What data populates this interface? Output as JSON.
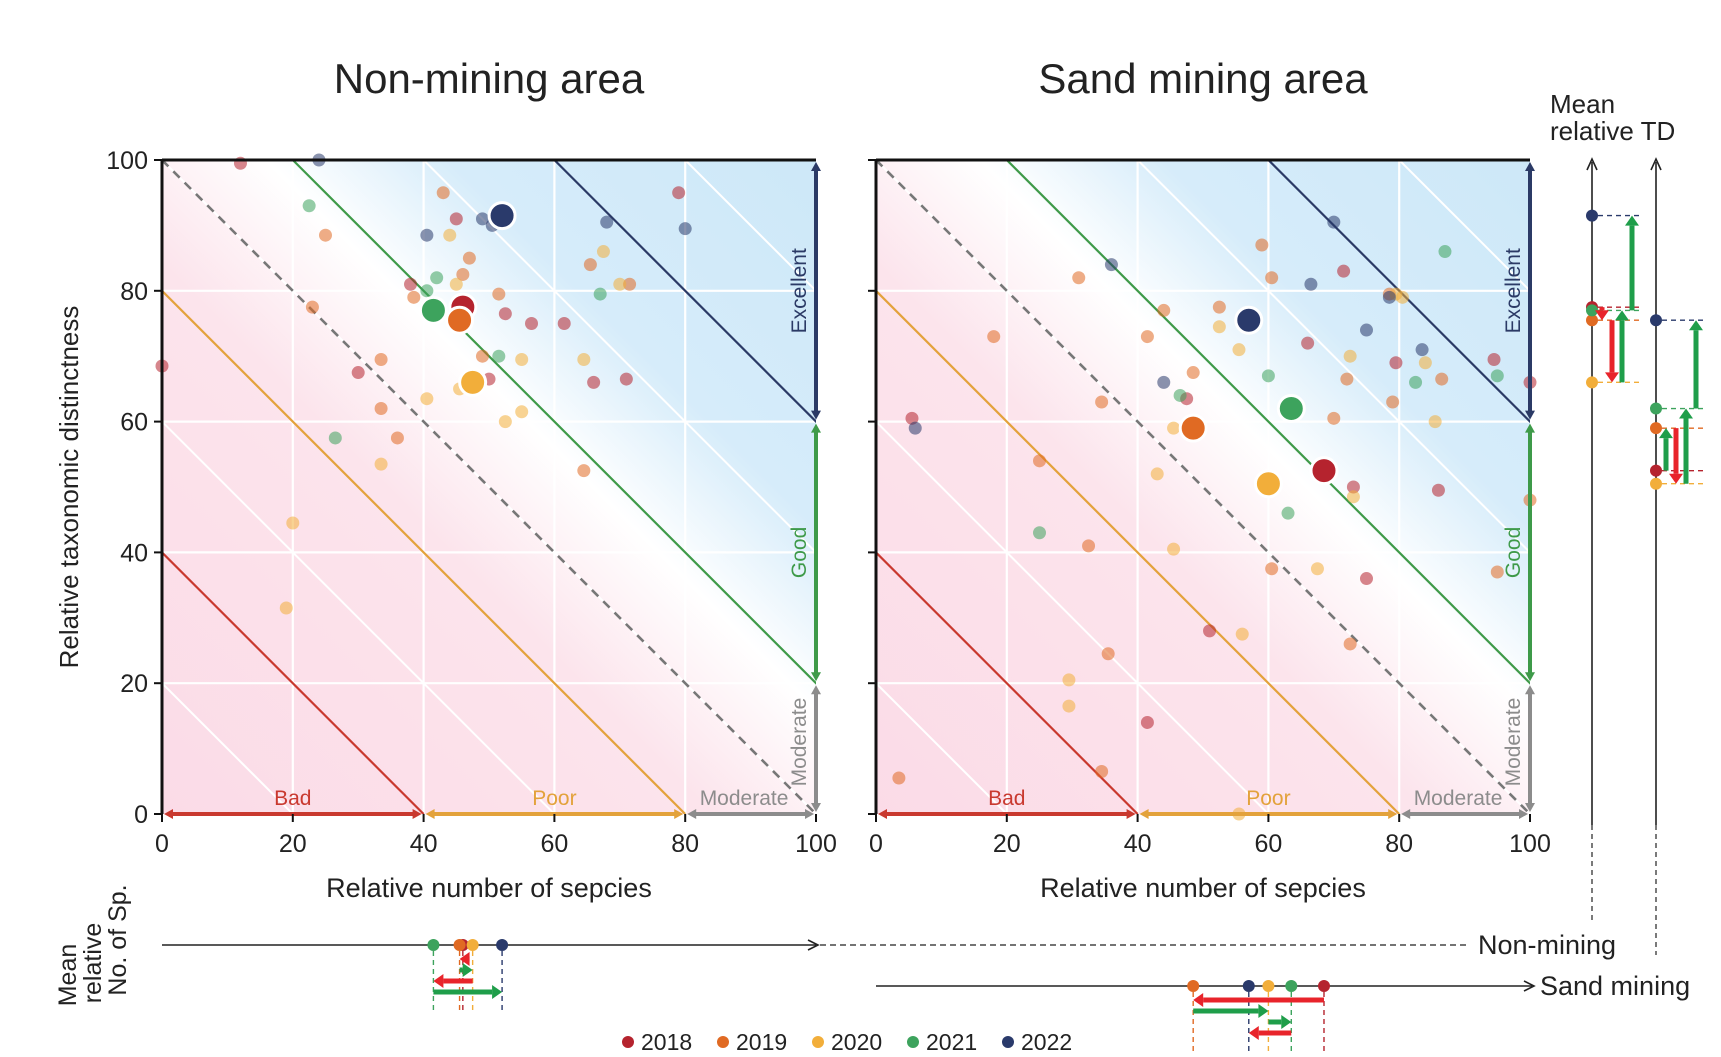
{
  "colors": {
    "2018": "#b5232e",
    "2019": "#e06a23",
    "2020": "#f2ae3a",
    "2021": "#3da35d",
    "2022": "#2a3a6b",
    "bad": "#c9392f",
    "poor": "#e3a23b",
    "good": "#3e9a49",
    "excellent": "#2b3a66",
    "moderate": "#8c8c8c",
    "arrow_up": "#1f9e4a",
    "arrow_down": "#e8242b",
    "blue_zone": "#cfe9f9",
    "pink_zone": "#fbdbe7"
  },
  "legend": [
    {
      "label": "2018",
      "year": "2018"
    },
    {
      "label": "2019",
      "year": "2019"
    },
    {
      "label": "2020",
      "year": "2020"
    },
    {
      "label": "2021",
      "year": "2021"
    },
    {
      "label": "2022",
      "year": "2022"
    }
  ],
  "labels": {
    "bad": "Bad",
    "poor": "Poor",
    "moderate": "Moderate",
    "good": "Good",
    "excellent": "Excellent",
    "ylabel": "Relative taxonomic distinctness",
    "xlabel": "Relative number of sepcies",
    "mean_td_line1": "Mean",
    "mean_td_line2": "relative TD",
    "mean_sp_line1": "Mean",
    "mean_sp_line2": "relative",
    "mean_sp_line3": "No. of Sp.",
    "non_mining": "Non-mining",
    "sand_mining": "Sand mining"
  },
  "chart_data": [
    {
      "type": "scatter",
      "title": "Non-mining area",
      "xlabel": "Relative number of sepcies",
      "ylabel": "Relative taxonomic distinctness",
      "xlim": [
        0,
        100
      ],
      "ylim": [
        0,
        100
      ],
      "xticks": [
        0,
        20,
        40,
        60,
        80,
        100
      ],
      "yticks": [
        0,
        20,
        40,
        60,
        80,
        100
      ],
      "grid": true,
      "means": [
        {
          "year": "2018",
          "x": 46,
          "y": 77.5
        },
        {
          "year": "2019",
          "x": 45.5,
          "y": 75.5
        },
        {
          "year": "2020",
          "x": 47.5,
          "y": 66
        },
        {
          "year": "2021",
          "x": 41.5,
          "y": 77
        },
        {
          "year": "2022",
          "x": 52,
          "y": 91.5
        }
      ],
      "points": [
        {
          "year": "2018",
          "x": 45,
          "y": 91
        },
        {
          "year": "2018",
          "x": 38,
          "y": 81
        },
        {
          "year": "2018",
          "x": 50,
          "y": 66.5
        },
        {
          "year": "2018",
          "x": 66,
          "y": 66
        },
        {
          "year": "2018",
          "x": 71,
          "y": 66.5
        },
        {
          "year": "2018",
          "x": 56.5,
          "y": 75
        },
        {
          "year": "2018",
          "x": 61.5,
          "y": 75
        },
        {
          "year": "2018",
          "x": 30,
          "y": 67.5
        },
        {
          "year": "2018",
          "x": 79,
          "y": 95
        },
        {
          "year": "2018",
          "x": 0,
          "y": 68.5
        },
        {
          "year": "2018",
          "x": 12,
          "y": 99.5
        },
        {
          "year": "2018",
          "x": 52.5,
          "y": 76.5
        },
        {
          "year": "2019",
          "x": 43,
          "y": 95
        },
        {
          "year": "2019",
          "x": 25,
          "y": 88.5
        },
        {
          "year": "2019",
          "x": 23,
          "y": 77.5
        },
        {
          "year": "2019",
          "x": 33.5,
          "y": 69.5
        },
        {
          "year": "2019",
          "x": 33.5,
          "y": 62
        },
        {
          "year": "2019",
          "x": 36,
          "y": 57.5
        },
        {
          "year": "2019",
          "x": 46,
          "y": 82.5
        },
        {
          "year": "2019",
          "x": 51.5,
          "y": 79.5
        },
        {
          "year": "2019",
          "x": 49,
          "y": 70
        },
        {
          "year": "2019",
          "x": 65.5,
          "y": 84
        },
        {
          "year": "2019",
          "x": 64.5,
          "y": 52.5
        },
        {
          "year": "2019",
          "x": 71.5,
          "y": 81
        },
        {
          "year": "2019",
          "x": 38.5,
          "y": 79
        },
        {
          "year": "2019",
          "x": 47,
          "y": 85
        },
        {
          "year": "2020",
          "x": 20,
          "y": 44.5
        },
        {
          "year": "2020",
          "x": 19,
          "y": 31.5
        },
        {
          "year": "2020",
          "x": 33.5,
          "y": 53.5
        },
        {
          "year": "2020",
          "x": 40.5,
          "y": 63.5
        },
        {
          "year": "2020",
          "x": 44,
          "y": 88.5
        },
        {
          "year": "2020",
          "x": 45,
          "y": 81
        },
        {
          "year": "2020",
          "x": 52.5,
          "y": 60
        },
        {
          "year": "2020",
          "x": 55,
          "y": 61.5
        },
        {
          "year": "2020",
          "x": 55,
          "y": 69.5
        },
        {
          "year": "2020",
          "x": 64.5,
          "y": 69.5
        },
        {
          "year": "2020",
          "x": 67.5,
          "y": 86
        },
        {
          "year": "2020",
          "x": 70,
          "y": 81
        },
        {
          "year": "2020",
          "x": 45.5,
          "y": 65
        },
        {
          "year": "2021",
          "x": 22.5,
          "y": 93
        },
        {
          "year": "2021",
          "x": 26.5,
          "y": 57.5
        },
        {
          "year": "2021",
          "x": 40.5,
          "y": 80
        },
        {
          "year": "2021",
          "x": 42,
          "y": 82
        },
        {
          "year": "2021",
          "x": 51.5,
          "y": 70
        },
        {
          "year": "2021",
          "x": 67,
          "y": 79.5
        },
        {
          "year": "2022",
          "x": 24,
          "y": 100
        },
        {
          "year": "2022",
          "x": 40.5,
          "y": 88.5
        },
        {
          "year": "2022",
          "x": 49,
          "y": 91
        },
        {
          "year": "2022",
          "x": 50.5,
          "y": 90
        },
        {
          "year": "2022",
          "x": 68,
          "y": 90.5
        },
        {
          "year": "2022",
          "x": 80,
          "y": 89.5
        }
      ]
    },
    {
      "type": "scatter",
      "title": "Sand mining area",
      "xlabel": "Relative number of sepcies",
      "xlim": [
        0,
        100
      ],
      "ylim": [
        0,
        100
      ],
      "xticks": [
        0,
        20,
        40,
        60,
        80,
        100
      ],
      "yticks": [
        0,
        20,
        40,
        60,
        80,
        100
      ],
      "grid": true,
      "means": [
        {
          "year": "2018",
          "x": 68.5,
          "y": 52.5
        },
        {
          "year": "2019",
          "x": 48.5,
          "y": 59
        },
        {
          "year": "2020",
          "x": 60,
          "y": 50.5
        },
        {
          "year": "2021",
          "x": 63.5,
          "y": 62
        },
        {
          "year": "2022",
          "x": 57,
          "y": 75.5
        }
      ],
      "points": [
        {
          "year": "2018",
          "x": 5.5,
          "y": 60.5
        },
        {
          "year": "2018",
          "x": 47.5,
          "y": 63.5
        },
        {
          "year": "2018",
          "x": 51,
          "y": 28
        },
        {
          "year": "2018",
          "x": 66,
          "y": 72
        },
        {
          "year": "2018",
          "x": 71.5,
          "y": 83
        },
        {
          "year": "2018",
          "x": 73,
          "y": 50
        },
        {
          "year": "2018",
          "x": 75,
          "y": 36
        },
        {
          "year": "2018",
          "x": 79.5,
          "y": 69
        },
        {
          "year": "2018",
          "x": 86,
          "y": 49.5
        },
        {
          "year": "2018",
          "x": 94.5,
          "y": 69.5
        },
        {
          "year": "2018",
          "x": 100,
          "y": 66
        },
        {
          "year": "2018",
          "x": 41.5,
          "y": 14
        },
        {
          "year": "2019",
          "x": 3.5,
          "y": 5.5
        },
        {
          "year": "2019",
          "x": 18,
          "y": 73
        },
        {
          "year": "2019",
          "x": 25,
          "y": 54
        },
        {
          "year": "2019",
          "x": 31,
          "y": 82
        },
        {
          "year": "2019",
          "x": 32.5,
          "y": 41
        },
        {
          "year": "2019",
          "x": 34.5,
          "y": 63
        },
        {
          "year": "2019",
          "x": 35.5,
          "y": 24.5
        },
        {
          "year": "2019",
          "x": 34.5,
          "y": 6.5
        },
        {
          "year": "2019",
          "x": 41.5,
          "y": 73
        },
        {
          "year": "2019",
          "x": 44,
          "y": 77
        },
        {
          "year": "2019",
          "x": 48.5,
          "y": 67.5
        },
        {
          "year": "2019",
          "x": 52.5,
          "y": 77.5
        },
        {
          "year": "2019",
          "x": 59,
          "y": 87
        },
        {
          "year": "2019",
          "x": 60.5,
          "y": 82
        },
        {
          "year": "2019",
          "x": 60.5,
          "y": 37.5
        },
        {
          "year": "2019",
          "x": 70,
          "y": 60.5
        },
        {
          "year": "2019",
          "x": 72,
          "y": 66.5
        },
        {
          "year": "2019",
          "x": 72.5,
          "y": 26
        },
        {
          "year": "2019",
          "x": 78.5,
          "y": 79.5
        },
        {
          "year": "2019",
          "x": 79,
          "y": 63
        },
        {
          "year": "2019",
          "x": 86.5,
          "y": 66.5
        },
        {
          "year": "2019",
          "x": 95,
          "y": 37
        },
        {
          "year": "2019",
          "x": 100,
          "y": 48
        },
        {
          "year": "2020",
          "x": 29.5,
          "y": 20.5
        },
        {
          "year": "2020",
          "x": 29.5,
          "y": 16.5
        },
        {
          "year": "2020",
          "x": 43,
          "y": 52
        },
        {
          "year": "2020",
          "x": 45.5,
          "y": 40.5
        },
        {
          "year": "2020",
          "x": 45.5,
          "y": 59
        },
        {
          "year": "2020",
          "x": 52.5,
          "y": 74.5
        },
        {
          "year": "2020",
          "x": 55.5,
          "y": 71
        },
        {
          "year": "2020",
          "x": 55.5,
          "y": 0
        },
        {
          "year": "2020",
          "x": 56,
          "y": 27.5
        },
        {
          "year": "2020",
          "x": 72.5,
          "y": 70
        },
        {
          "year": "2020",
          "x": 73,
          "y": 48.5
        },
        {
          "year": "2020",
          "x": 79.5,
          "y": 79.5
        },
        {
          "year": "2020",
          "x": 80.5,
          "y": 79
        },
        {
          "year": "2020",
          "x": 84,
          "y": 69
        },
        {
          "year": "2020",
          "x": 85.5,
          "y": 60
        },
        {
          "year": "2020",
          "x": 67.5,
          "y": 37.5
        },
        {
          "year": "2021",
          "x": 25,
          "y": 43
        },
        {
          "year": "2021",
          "x": 46.5,
          "y": 64
        },
        {
          "year": "2021",
          "x": 60,
          "y": 67
        },
        {
          "year": "2021",
          "x": 63,
          "y": 46
        },
        {
          "year": "2021",
          "x": 82.5,
          "y": 66
        },
        {
          "year": "2021",
          "x": 87,
          "y": 86
        },
        {
          "year": "2021",
          "x": 95,
          "y": 67
        },
        {
          "year": "2022",
          "x": 6,
          "y": 59
        },
        {
          "year": "2022",
          "x": 36,
          "y": 84
        },
        {
          "year": "2022",
          "x": 44,
          "y": 66
        },
        {
          "year": "2022",
          "x": 66.5,
          "y": 81
        },
        {
          "year": "2022",
          "x": 70,
          "y": 90.5
        },
        {
          "year": "2022",
          "x": 75,
          "y": 74
        },
        {
          "year": "2022",
          "x": 78.5,
          "y": 79
        },
        {
          "year": "2022",
          "x": 83.5,
          "y": 71
        }
      ]
    }
  ]
}
